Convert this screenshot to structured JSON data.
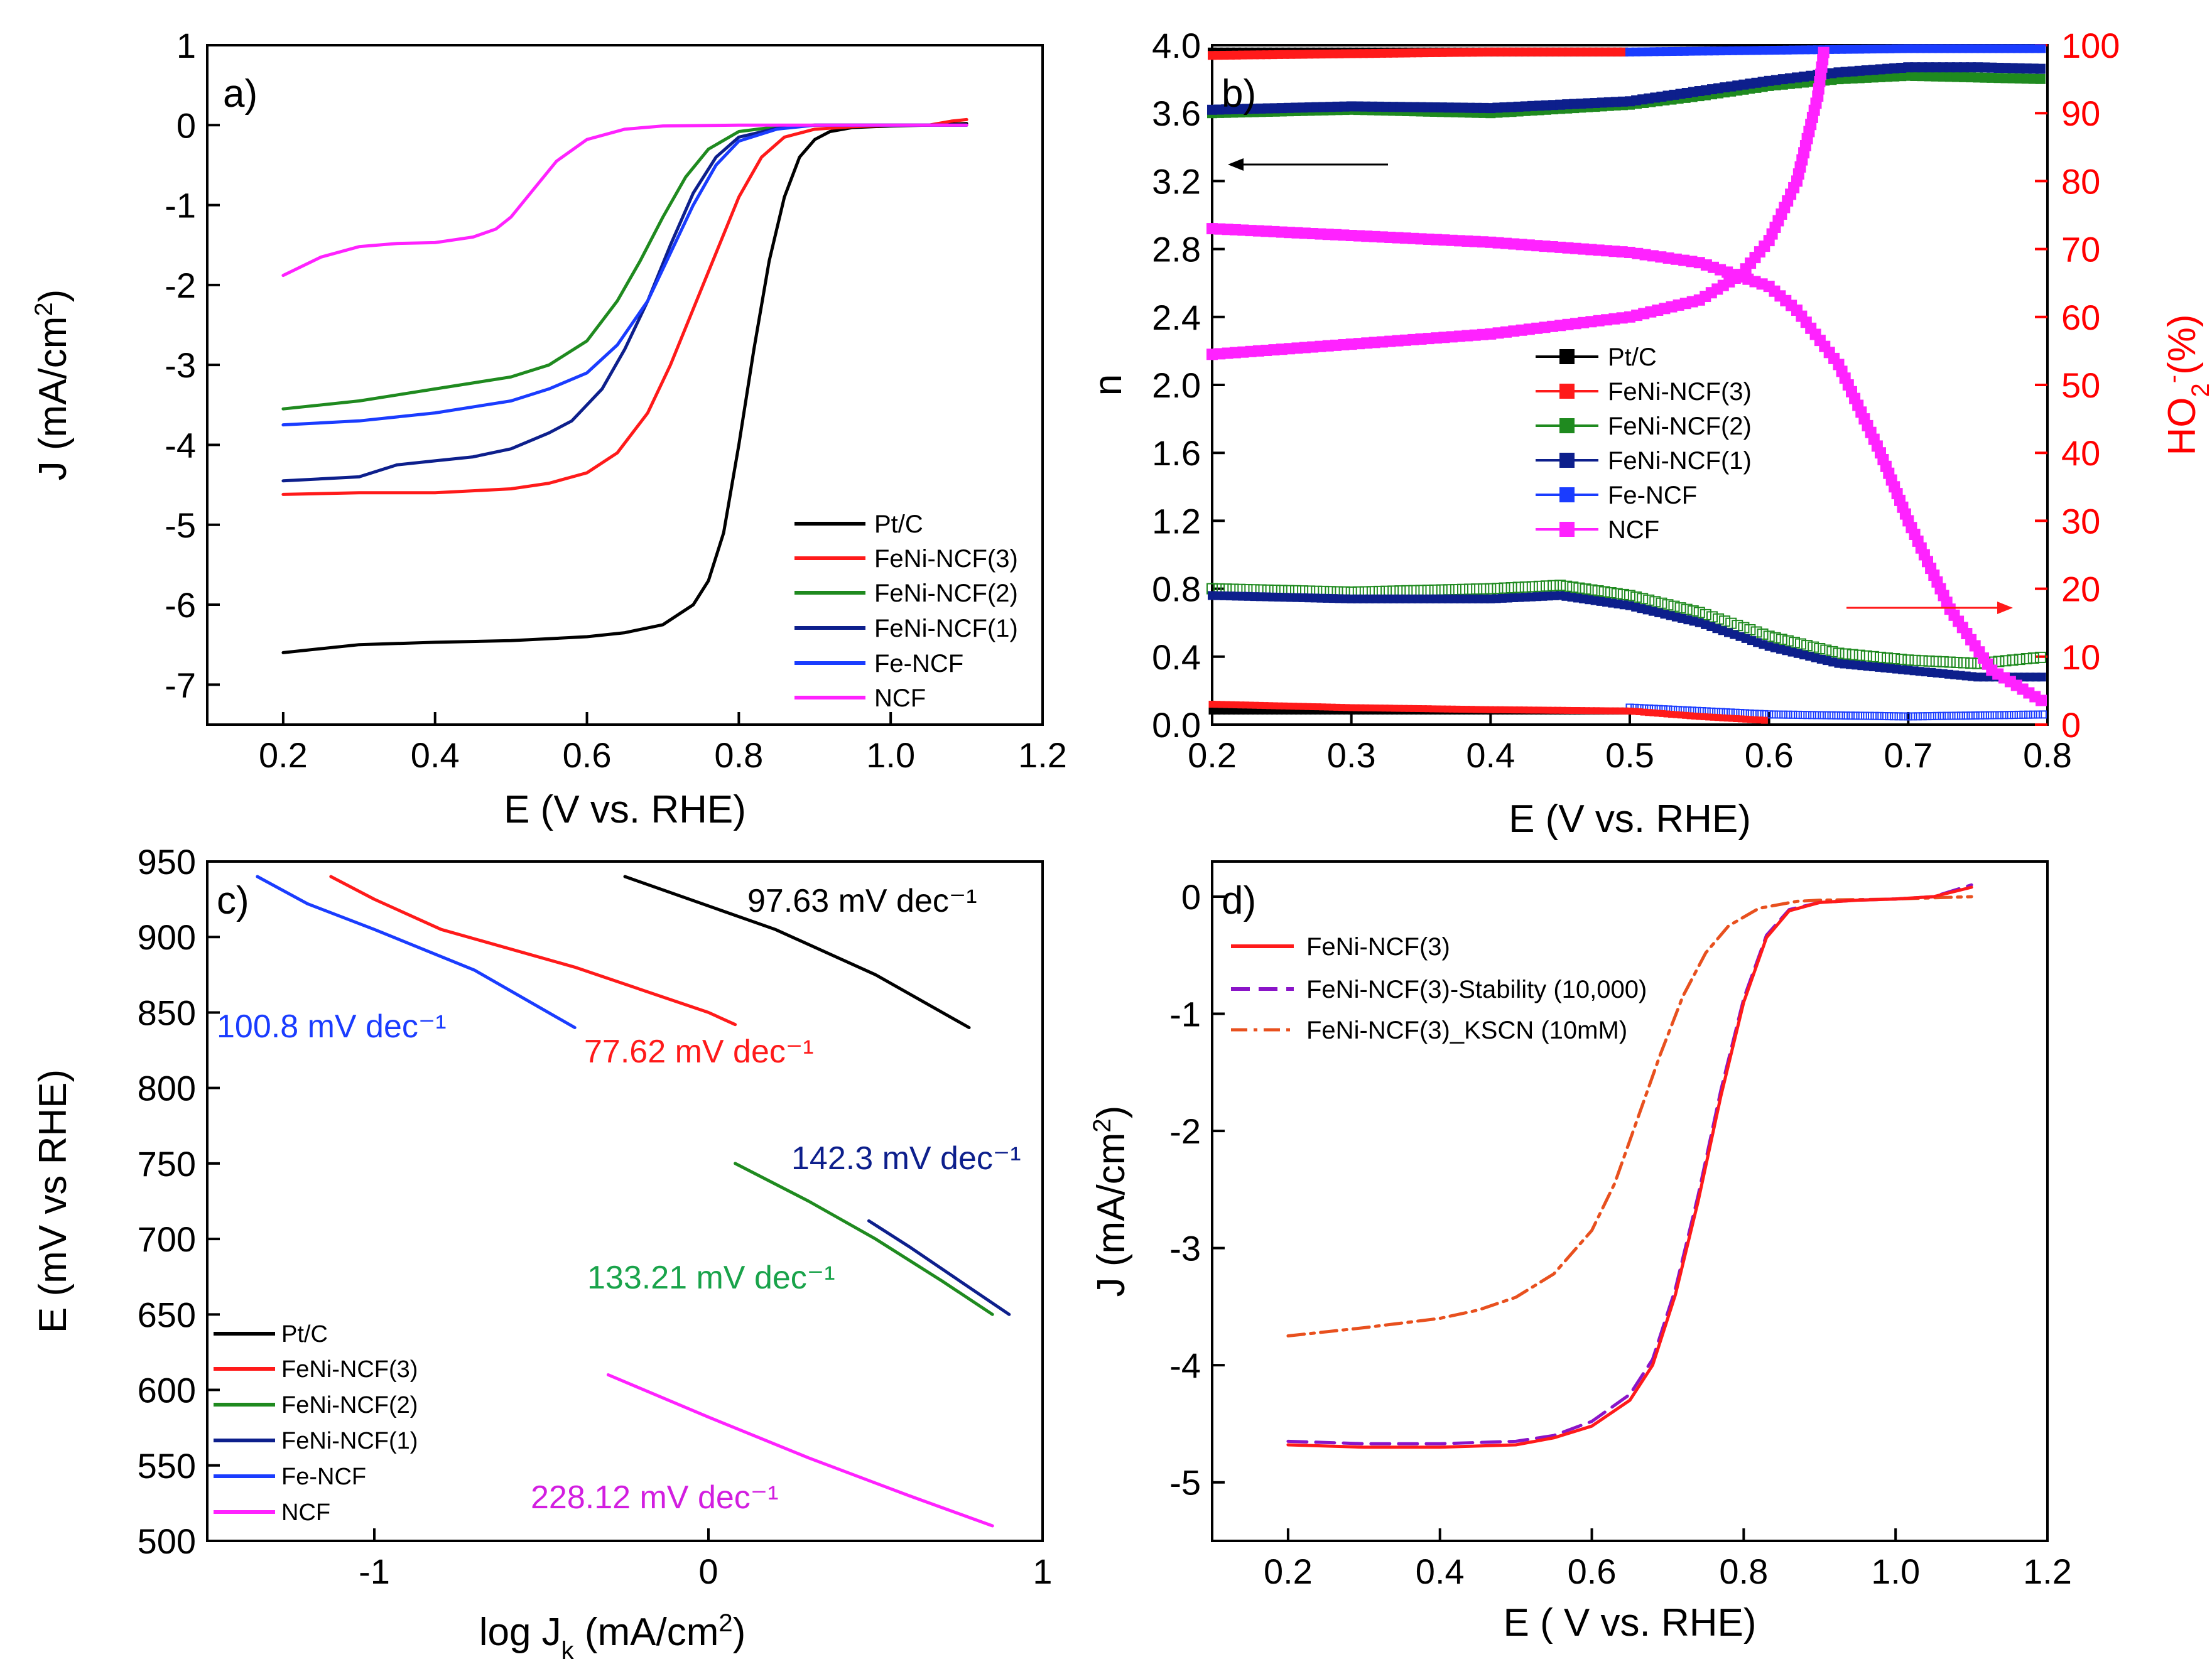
{
  "colors": {
    "black": "#000000",
    "red": "#ff1a1a",
    "green": "#1f8a1f",
    "navy": "#0d1f8c",
    "blue": "#1a3cff",
    "magenta": "#ff22ff",
    "label_green": "#19a34a",
    "orange": "#e8501e",
    "purple": "#8a14c8",
    "axis_red": "#ff0000"
  },
  "chart_data": [
    {
      "panel": "a)",
      "type": "line",
      "xlabel": "E (V vs. RHE)",
      "ylabel": "J (mA/cm2)",
      "xlim": [
        0.1,
        1.2
      ],
      "ylim": [
        -7.5,
        1
      ],
      "xticks": [
        "0.2",
        "0.4",
        "0.6",
        "0.8",
        "1.0",
        "1.2"
      ],
      "xtick_values": [
        0.2,
        0.4,
        0.6,
        0.8,
        1.0,
        1.2
      ],
      "yticks": [
        "1",
        "0",
        "-1",
        "-2",
        "-3",
        "-4",
        "-5",
        "-6",
        "-7"
      ],
      "ytick_values": [
        1,
        0,
        -1,
        -2,
        -3,
        -4,
        -5,
        -6,
        -7
      ],
      "legend": [
        "Pt/C",
        "FeNi-NCF(3)",
        "FeNi-NCF(2)",
        "FeNi-NCF(1)",
        "Fe-NCF",
        "NCF"
      ],
      "series": [
        {
          "name": "Pt/C",
          "color": "black",
          "x": [
            0.2,
            0.3,
            0.4,
            0.5,
            0.6,
            0.65,
            0.7,
            0.74,
            0.76,
            0.78,
            0.8,
            0.82,
            0.84,
            0.86,
            0.88,
            0.9,
            0.92,
            0.95,
            1.0,
            1.05,
            1.1
          ],
          "y": [
            -6.6,
            -6.5,
            -6.47,
            -6.45,
            -6.4,
            -6.35,
            -6.25,
            -6.0,
            -5.7,
            -5.1,
            -4.0,
            -2.8,
            -1.7,
            -0.9,
            -0.4,
            -0.18,
            -0.08,
            -0.03,
            -0.01,
            0.0,
            0.02
          ]
        },
        {
          "name": "FeNi-NCF(3)",
          "color": "red",
          "x": [
            0.2,
            0.3,
            0.4,
            0.5,
            0.55,
            0.6,
            0.64,
            0.68,
            0.71,
            0.74,
            0.77,
            0.8,
            0.83,
            0.86,
            0.9,
            0.95,
            1.0,
            1.05,
            1.08,
            1.1
          ],
          "y": [
            -4.62,
            -4.6,
            -4.6,
            -4.55,
            -4.48,
            -4.35,
            -4.1,
            -3.6,
            -3.0,
            -2.3,
            -1.6,
            -0.9,
            -0.4,
            -0.15,
            -0.05,
            -0.02,
            0.0,
            0.0,
            0.05,
            0.07
          ]
        },
        {
          "name": "FeNi-NCF(2)",
          "color": "green",
          "x": [
            0.2,
            0.3,
            0.4,
            0.5,
            0.55,
            0.6,
            0.64,
            0.67,
            0.7,
            0.73,
            0.76,
            0.8,
            0.85,
            0.9,
            1.0,
            1.1
          ],
          "y": [
            -3.55,
            -3.45,
            -3.3,
            -3.15,
            -3.0,
            -2.7,
            -2.2,
            -1.7,
            -1.15,
            -0.65,
            -0.3,
            -0.08,
            -0.02,
            0.0,
            0.0,
            0.0
          ]
        },
        {
          "name": "FeNi-NCF(1)",
          "color": "navy",
          "x": [
            0.2,
            0.3,
            0.35,
            0.4,
            0.45,
            0.5,
            0.55,
            0.58,
            0.62,
            0.65,
            0.68,
            0.71,
            0.74,
            0.77,
            0.8,
            0.85,
            0.9,
            1.0,
            1.1
          ],
          "y": [
            -4.45,
            -4.4,
            -4.25,
            -4.2,
            -4.15,
            -4.05,
            -3.85,
            -3.7,
            -3.3,
            -2.8,
            -2.2,
            -1.5,
            -0.85,
            -0.4,
            -0.15,
            -0.04,
            0.0,
            0.0,
            0.0
          ]
        },
        {
          "name": "Fe-NCF",
          "color": "blue",
          "x": [
            0.2,
            0.3,
            0.4,
            0.5,
            0.55,
            0.6,
            0.64,
            0.68,
            0.71,
            0.74,
            0.77,
            0.8,
            0.85,
            0.9,
            1.0,
            1.1
          ],
          "y": [
            -3.75,
            -3.7,
            -3.6,
            -3.45,
            -3.3,
            -3.1,
            -2.75,
            -2.2,
            -1.6,
            -1.0,
            -0.5,
            -0.2,
            -0.05,
            0.0,
            0.0,
            0.0
          ]
        },
        {
          "name": "NCF",
          "color": "magenta",
          "x": [
            0.2,
            0.25,
            0.3,
            0.35,
            0.4,
            0.45,
            0.48,
            0.5,
            0.53,
            0.56,
            0.6,
            0.65,
            0.7,
            0.8,
            0.9,
            1.1
          ],
          "y": [
            -1.88,
            -1.65,
            -1.52,
            -1.48,
            -1.47,
            -1.4,
            -1.3,
            -1.15,
            -0.8,
            -0.45,
            -0.18,
            -0.05,
            -0.01,
            0.0,
            0.0,
            0.0
          ]
        }
      ]
    },
    {
      "panel": "b)",
      "type": "scatter",
      "xlabel": "E (V vs. RHE)",
      "ylabel": "n",
      "y2label": "HO2-(%)",
      "xlim": [
        0.2,
        0.8
      ],
      "ylim": [
        0,
        4
      ],
      "y2lim": [
        0,
        100
      ],
      "xticks": [
        "0.2",
        "0.3",
        "0.4",
        "0.5",
        "0.6",
        "0.7",
        "0.8"
      ],
      "xtick_values": [
        0.2,
        0.3,
        0.4,
        0.5,
        0.6,
        0.7,
        0.8
      ],
      "yticks": [
        "0.0",
        "0.4",
        "0.8",
        "1.2",
        "1.6",
        "2.0",
        "2.4",
        "2.8",
        "3.2",
        "3.6",
        "4.0"
      ],
      "ytick_values": [
        0,
        0.4,
        0.8,
        1.2,
        1.6,
        2.0,
        2.4,
        2.8,
        3.2,
        3.6,
        4.0
      ],
      "y2ticks": [
        "0",
        "10",
        "20",
        "30",
        "40",
        "50",
        "60",
        "70",
        "80",
        "90",
        "100"
      ],
      "y2tick_values": [
        0,
        10,
        20,
        30,
        40,
        50,
        60,
        70,
        80,
        90,
        100
      ],
      "legend": [
        "Pt/C",
        "FeNi-NCF(3)",
        "FeNi-NCF(2)",
        "FeNi-NCF(1)",
        "Fe-NCF",
        "NCF"
      ],
      "n_series": [
        {
          "name": "Pt/C",
          "color": "black",
          "x": [
            0.2,
            0.5
          ],
          "y": [
            3.96,
            3.96
          ]
        },
        {
          "name": "FeNi-NCF(3)",
          "color": "red",
          "x": [
            0.2,
            0.3,
            0.4,
            0.5
          ],
          "y": [
            3.94,
            3.95,
            3.96,
            3.96
          ]
        },
        {
          "name": "FeNi-NCF(2)",
          "color": "green",
          "x": [
            0.2,
            0.3,
            0.4,
            0.5,
            0.55,
            0.6,
            0.65,
            0.7,
            0.75,
            0.8
          ],
          "y": [
            3.6,
            3.62,
            3.6,
            3.65,
            3.7,
            3.76,
            3.8,
            3.82,
            3.81,
            3.8
          ]
        },
        {
          "name": "FeNi-NCF(1)",
          "color": "navy",
          "x": [
            0.2,
            0.3,
            0.4,
            0.5,
            0.55,
            0.6,
            0.65,
            0.7,
            0.75,
            0.8
          ],
          "y": [
            3.62,
            3.64,
            3.63,
            3.67,
            3.73,
            3.79,
            3.84,
            3.87,
            3.87,
            3.86
          ]
        },
        {
          "name": "Fe-NCF",
          "color": "blue",
          "x": [
            0.5,
            0.6,
            0.7,
            0.8
          ],
          "y": [
            3.96,
            3.97,
            3.98,
            3.98
          ]
        },
        {
          "name": "NCF",
          "color": "magenta",
          "x": [
            0.2,
            0.3,
            0.4,
            0.5,
            0.55,
            0.58,
            0.6,
            0.62,
            0.635,
            0.64
          ],
          "y": [
            2.18,
            2.24,
            2.3,
            2.4,
            2.5,
            2.65,
            2.85,
            3.2,
            3.7,
            4.0
          ]
        }
      ],
      "ho2_series": [
        {
          "name": "Pt/C",
          "color": "black",
          "x": [
            0.2,
            0.3,
            0.4,
            0.5
          ],
          "y": [
            2.0,
            2.0,
            2.0,
            2.0
          ]
        },
        {
          "name": "FeNi-NCF(3)",
          "color": "red",
          "x": [
            0.2,
            0.3,
            0.4,
            0.5,
            0.55,
            0.6
          ],
          "y": [
            3.0,
            2.5,
            2.2,
            2.0,
            1.2,
            0.6
          ]
        },
        {
          "name": "FeNi-NCF(2)",
          "color": "green",
          "x": [
            0.2,
            0.3,
            0.4,
            0.45,
            0.5,
            0.55,
            0.6,
            0.65,
            0.7,
            0.75,
            0.8
          ],
          "y": [
            20.0,
            19.5,
            20.0,
            20.5,
            19.0,
            16.5,
            13.0,
            10.5,
            9.5,
            9.0,
            10.0
          ]
        },
        {
          "name": "FeNi-NCF(1)",
          "color": "navy",
          "x": [
            0.2,
            0.3,
            0.4,
            0.45,
            0.5,
            0.55,
            0.6,
            0.65,
            0.7,
            0.75,
            0.8
          ],
          "y": [
            19.0,
            18.5,
            18.5,
            19.0,
            17.5,
            15.0,
            11.5,
            9.0,
            8.0,
            7.0,
            7.0
          ]
        },
        {
          "name": "Fe-NCF",
          "color": "blue",
          "x": [
            0.5,
            0.6,
            0.7,
            0.8
          ],
          "y": [
            2.5,
            1.5,
            1.2,
            1.5
          ]
        },
        {
          "name": "NCF",
          "color": "magenta",
          "x": [
            0.2,
            0.3,
            0.4,
            0.5,
            0.55,
            0.6,
            0.62,
            0.65,
            0.68,
            0.7,
            0.73,
            0.76,
            0.8
          ],
          "y": [
            73.0,
            72.0,
            71.0,
            69.5,
            68.0,
            64.5,
            61.0,
            53.0,
            40.0,
            30.0,
            17.0,
            8.0,
            3.0
          ]
        }
      ]
    },
    {
      "panel": "c)",
      "type": "line",
      "xlabel": "log Jk (mA/cm2)",
      "ylabel": "E (mV vs RHE)",
      "xlim": [
        -1.5,
        1.0
      ],
      "ylim": [
        500,
        950
      ],
      "xticks": [
        "-1",
        "0",
        "1"
      ],
      "xtick_values": [
        -1,
        0,
        1
      ],
      "yticks": [
        "950",
        "900",
        "850",
        "800",
        "750",
        "700",
        "650",
        "600",
        "550",
        "500"
      ],
      "ytick_values": [
        950,
        900,
        850,
        800,
        750,
        700,
        650,
        600,
        550,
        500
      ],
      "legend": [
        "Pt/C",
        "FeNi-NCF(3)",
        "FeNi-NCF(2)",
        "FeNi-NCF(1)",
        "Fe-NCF",
        "NCF"
      ],
      "series": [
        {
          "name": "Pt/C",
          "color": "black",
          "x": [
            -0.25,
            0.2,
            0.5,
            0.78
          ],
          "y": [
            940,
            905,
            875,
            840
          ]
        },
        {
          "name": "FeNi-NCF(3)",
          "color": "red",
          "x": [
            -1.13,
            -1.0,
            -0.8,
            -0.4,
            0.0,
            0.08
          ],
          "y": [
            940,
            925,
            905,
            880,
            850,
            842
          ]
        },
        {
          "name": "FeNi-NCF(2)",
          "color": "green",
          "x": [
            0.08,
            0.3,
            0.5,
            0.7,
            0.85
          ],
          "y": [
            750,
            725,
            700,
            672,
            650
          ]
        },
        {
          "name": "FeNi-NCF(1)",
          "color": "navy",
          "x": [
            0.48,
            0.6,
            0.7,
            0.8,
            0.9
          ],
          "y": [
            712,
            695,
            680,
            665,
            650
          ]
        },
        {
          "name": "Fe-NCF",
          "color": "blue",
          "x": [
            -1.35,
            -1.2,
            -1.0,
            -0.7,
            -0.4
          ],
          "y": [
            940,
            922,
            905,
            878,
            840
          ]
        },
        {
          "name": "NCF",
          "color": "magenta",
          "x": [
            -0.3,
            0.0,
            0.3,
            0.6,
            0.85
          ],
          "y": [
            610,
            582,
            555,
            530,
            510
          ]
        }
      ],
      "annotations": [
        "97.63 mV dec⁻¹",
        "100.8 mV dec⁻¹",
        "77.62 mV dec⁻¹",
        "142.3 mV dec⁻¹",
        "133.21 mV dec⁻¹",
        "228.12 mV dec⁻¹"
      ]
    },
    {
      "panel": "d)",
      "type": "line",
      "xlabel": "E ( V vs. RHE)",
      "ylabel": "J (mA/cm2)",
      "xlim": [
        0.1,
        1.2
      ],
      "ylim": [
        -5.5,
        0.3
      ],
      "xticks": [
        "0.2",
        "0.4",
        "0.6",
        "0.8",
        "1.0",
        "1.2"
      ],
      "xtick_values": [
        0.2,
        0.4,
        0.6,
        0.8,
        1.0,
        1.2
      ],
      "yticks": [
        "0",
        "-1",
        "-2",
        "-3",
        "-4",
        "-5"
      ],
      "ytick_values": [
        0,
        -1,
        -2,
        -3,
        -4,
        -5
      ],
      "legend": [
        "FeNi-NCF(3)",
        "FeNi-NCF(3)-Stability (10,000)",
        "FeNi-NCF(3)_KSCN (10mM)"
      ],
      "series": [
        {
          "name": "FeNi-NCF(3)",
          "color": "red",
          "style": "solid",
          "x": [
            0.2,
            0.3,
            0.4,
            0.5,
            0.55,
            0.6,
            0.65,
            0.68,
            0.71,
            0.74,
            0.77,
            0.8,
            0.83,
            0.86,
            0.9,
            0.95,
            1.0,
            1.05,
            1.1
          ],
          "y": [
            -4.68,
            -4.7,
            -4.7,
            -4.68,
            -4.62,
            -4.52,
            -4.3,
            -4.0,
            -3.4,
            -2.6,
            -1.7,
            -0.9,
            -0.35,
            -0.12,
            -0.05,
            -0.03,
            -0.02,
            0.0,
            0.08
          ]
        },
        {
          "name": "FeNi-NCF(3)-Stability (10,000)",
          "color": "purple",
          "style": "dash",
          "x": [
            0.2,
            0.3,
            0.4,
            0.5,
            0.55,
            0.6,
            0.65,
            0.68,
            0.71,
            0.74,
            0.77,
            0.8,
            0.83,
            0.86,
            0.9,
            0.95,
            1.0,
            1.05,
            1.1
          ],
          "y": [
            -4.65,
            -4.67,
            -4.67,
            -4.65,
            -4.6,
            -4.48,
            -4.25,
            -3.95,
            -3.35,
            -2.55,
            -1.65,
            -0.87,
            -0.33,
            -0.11,
            -0.05,
            -0.03,
            -0.02,
            0.0,
            0.1
          ]
        },
        {
          "name": "FeNi-NCF(3)_KSCN (10mM)",
          "color": "orange",
          "style": "dashdot",
          "x": [
            0.2,
            0.3,
            0.4,
            0.45,
            0.5,
            0.55,
            0.6,
            0.63,
            0.66,
            0.69,
            0.72,
            0.75,
            0.78,
            0.82,
            0.87,
            0.9,
            1.0,
            1.1
          ],
          "y": [
            -3.75,
            -3.68,
            -3.6,
            -3.53,
            -3.42,
            -3.22,
            -2.85,
            -2.45,
            -1.9,
            -1.35,
            -0.85,
            -0.48,
            -0.25,
            -0.1,
            -0.04,
            -0.03,
            -0.02,
            0.0
          ]
        }
      ]
    }
  ]
}
